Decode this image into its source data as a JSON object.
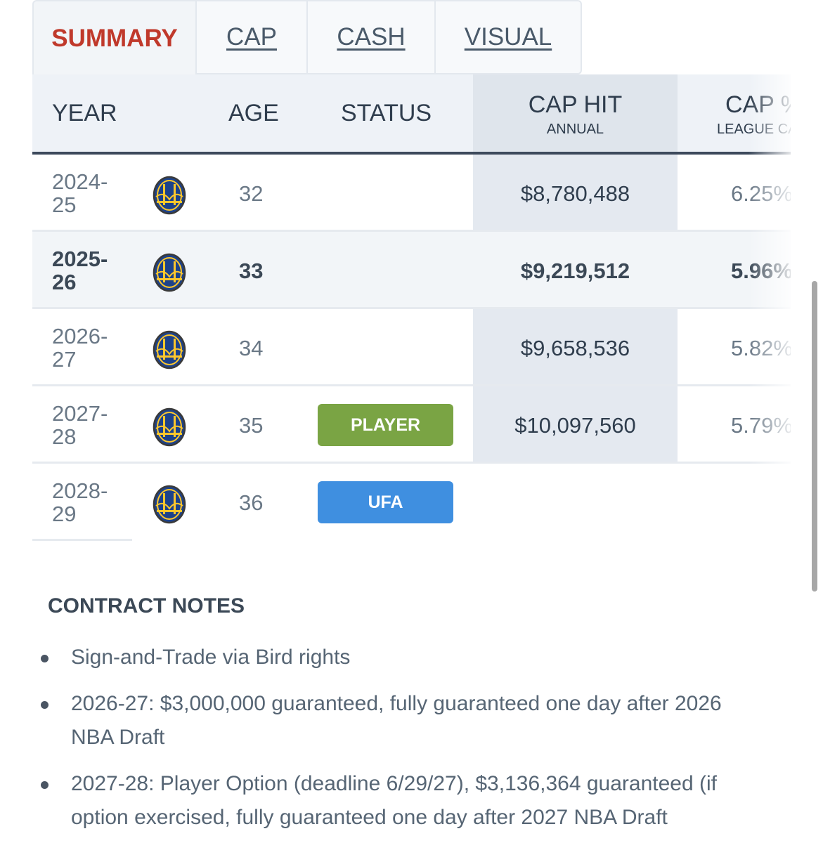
{
  "tabs": [
    {
      "label": "SUMMARY",
      "active": true
    },
    {
      "label": "CAP",
      "active": false
    },
    {
      "label": "CASH",
      "active": false
    },
    {
      "label": "VISUAL",
      "active": false
    }
  ],
  "table": {
    "headers": {
      "year": "YEAR",
      "age": "AGE",
      "status": "STATUS",
      "cap_hit": "CAP HIT",
      "cap_hit_sub": "ANNUAL",
      "cap_pct": "CAP %",
      "cap_pct_sub": "LEAGUE CA"
    },
    "rows": [
      {
        "year_a": "2024-",
        "year_b": "25",
        "age": "32",
        "status": "",
        "cap_hit": "$8,780,488",
        "cap_pct": "6.25%"
      },
      {
        "year_a": "2025-",
        "year_b": "26",
        "age": "33",
        "status": "",
        "cap_hit": "$9,219,512",
        "cap_pct": "5.96%"
      },
      {
        "year_a": "2026-",
        "year_b": "27",
        "age": "34",
        "status": "",
        "cap_hit": "$9,658,536",
        "cap_pct": "5.82%"
      },
      {
        "year_a": "2027-",
        "year_b": "28",
        "age": "35",
        "status": "PLAYER",
        "cap_hit": "$10,097,560",
        "cap_pct": "5.79%"
      },
      {
        "year_a": "2028-",
        "year_b": "29",
        "age": "36",
        "status": "UFA",
        "cap_hit": "",
        "cap_pct": ""
      }
    ],
    "team_logo_icon": "warriors-bridge-logo-icon",
    "colors": {
      "player_badge": "#7aa444",
      "ufa_badge": "#3f8fe0",
      "active_tab": "#c0392b"
    }
  },
  "contract_notes": {
    "title": "CONTRACT NOTES",
    "items": [
      "Sign-and-Trade via Bird rights",
      "2026-27: $3,000,000 guaranteed, fully guaranteed one day after 2026 NBA Draft",
      "2027-28: Player Option (deadline 6/29/27), $3,136,364 guaranteed (if option exercised, fully guaranteed one day after 2027 NBA Draft"
    ]
  }
}
